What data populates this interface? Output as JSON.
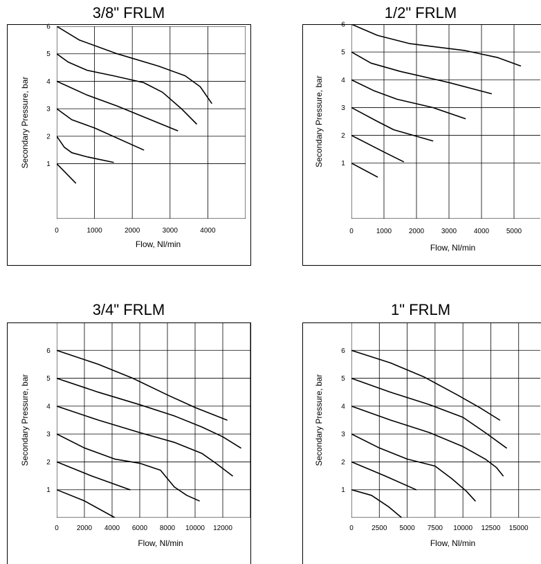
{
  "chart_data": [
    {
      "type": "line",
      "title": "3/8\" FRLM",
      "xlabel": "Flow, Nl/min",
      "ylabel": "Secondary Pressure, bar",
      "xlim": [
        0,
        5000
      ],
      "ylim": [
        -1,
        6
      ],
      "x_ticks": [
        0,
        1000,
        2000,
        3000,
        4000
      ],
      "x_gridlines": [
        1000,
        2000,
        3000,
        4000,
        5000
      ],
      "y_ticks": [
        1,
        2,
        3,
        4,
        5,
        6
      ],
      "grid": true,
      "series": [
        {
          "points": [
            [
              0,
              1.0
            ],
            [
              500,
              0.3
            ]
          ]
        },
        {
          "points": [
            [
              0,
              2.0
            ],
            [
              200,
              1.6
            ],
            [
              400,
              1.4
            ],
            [
              800,
              1.25
            ],
            [
              1500,
              1.05
            ]
          ]
        },
        {
          "points": [
            [
              0,
              3.0
            ],
            [
              400,
              2.6
            ],
            [
              1000,
              2.3
            ],
            [
              2300,
              1.5
            ]
          ]
        },
        {
          "points": [
            [
              0,
              4.0
            ],
            [
              800,
              3.5
            ],
            [
              1600,
              3.1
            ],
            [
              3200,
              2.2
            ]
          ]
        },
        {
          "points": [
            [
              0,
              5.0
            ],
            [
              300,
              4.7
            ],
            [
              800,
              4.4
            ],
            [
              1500,
              4.2
            ],
            [
              2300,
              3.95
            ],
            [
              2800,
              3.6
            ],
            [
              3300,
              3.0
            ],
            [
              3700,
              2.45
            ]
          ]
        },
        {
          "points": [
            [
              0,
              6.0
            ],
            [
              600,
              5.5
            ],
            [
              1600,
              5.0
            ],
            [
              2700,
              4.55
            ],
            [
              3400,
              4.2
            ],
            [
              3800,
              3.8
            ],
            [
              4100,
              3.2
            ]
          ]
        }
      ]
    },
    {
      "type": "line",
      "title": "1/2\" FRLM",
      "xlabel": "Flow, Nl/min",
      "ylabel": "Secondary Pressure, bar",
      "xlim": [
        0,
        6000
      ],
      "ylim": [
        -1,
        6
      ],
      "x_ticks": [
        0,
        1000,
        2000,
        3000,
        4000,
        5000
      ],
      "x_gridlines": [
        1000,
        2000,
        3000,
        4000,
        5000,
        6000
      ],
      "y_ticks": [
        1,
        2,
        3,
        4,
        5,
        6
      ],
      "grid": true,
      "series": [
        {
          "points": [
            [
              0,
              1.0
            ],
            [
              800,
              0.5
            ]
          ]
        },
        {
          "points": [
            [
              0,
              2.0
            ],
            [
              1000,
              1.4
            ],
            [
              1600,
              1.05
            ]
          ]
        },
        {
          "points": [
            [
              0,
              3.0
            ],
            [
              800,
              2.5
            ],
            [
              1300,
              2.2
            ],
            [
              2500,
              1.8
            ]
          ]
        },
        {
          "points": [
            [
              0,
              4.0
            ],
            [
              700,
              3.6
            ],
            [
              1400,
              3.3
            ],
            [
              2500,
              3.0
            ],
            [
              3500,
              2.6
            ]
          ]
        },
        {
          "points": [
            [
              0,
              5.0
            ],
            [
              600,
              4.6
            ],
            [
              1500,
              4.3
            ],
            [
              3000,
              3.9
            ],
            [
              4300,
              3.5
            ]
          ]
        },
        {
          "points": [
            [
              0,
              6.0
            ],
            [
              800,
              5.6
            ],
            [
              1800,
              5.3
            ],
            [
              3500,
              5.05
            ],
            [
              4500,
              4.8
            ],
            [
              5200,
              4.5
            ]
          ]
        }
      ]
    },
    {
      "type": "line",
      "title": "3/4\" FRLM",
      "xlabel": "Flow, Nl/min",
      "ylabel": "Secondary Pressure, bar",
      "xlim": [
        0,
        14000
      ],
      "ylim": [
        0,
        7
      ],
      "x_ticks": [
        0,
        2000,
        4000,
        6000,
        8000,
        10000,
        12000
      ],
      "x_gridlines": [
        2000,
        4000,
        6000,
        8000,
        10000,
        12000,
        14000
      ],
      "y_ticks": [
        1,
        2,
        3,
        4,
        5,
        6
      ],
      "grid": true,
      "series": [
        {
          "points": [
            [
              0,
              1.0
            ],
            [
              2000,
              0.6
            ],
            [
              4200,
              0.0
            ]
          ]
        },
        {
          "points": [
            [
              0,
              2.0
            ],
            [
              2500,
              1.5
            ],
            [
              5300,
              1.0
            ]
          ]
        },
        {
          "points": [
            [
              0,
              3.0
            ],
            [
              2000,
              2.5
            ],
            [
              4200,
              2.1
            ],
            [
              6000,
              1.95
            ],
            [
              7500,
              1.7
            ],
            [
              8500,
              1.1
            ],
            [
              9400,
              0.8
            ],
            [
              10300,
              0.6
            ]
          ]
        },
        {
          "points": [
            [
              0,
              4.0
            ],
            [
              3000,
              3.5
            ],
            [
              6000,
              3.05
            ],
            [
              8500,
              2.7
            ],
            [
              10500,
              2.3
            ],
            [
              11500,
              1.95
            ],
            [
              12700,
              1.5
            ]
          ]
        },
        {
          "points": [
            [
              0,
              5.0
            ],
            [
              3000,
              4.5
            ],
            [
              6000,
              4.05
            ],
            [
              8500,
              3.65
            ],
            [
              10500,
              3.25
            ],
            [
              12000,
              2.9
            ],
            [
              13300,
              2.5
            ]
          ]
        },
        {
          "points": [
            [
              0,
              6.0
            ],
            [
              3000,
              5.5
            ],
            [
              5500,
              5.0
            ],
            [
              8000,
              4.4
            ],
            [
              10000,
              3.95
            ],
            [
              12300,
              3.5
            ]
          ]
        }
      ]
    },
    {
      "type": "line",
      "title": "1\" FRLM",
      "xlabel": "Flow, Nl/min",
      "ylabel": "Secondary Pressure, bar",
      "xlim": [
        0,
        17500
      ],
      "ylim": [
        0,
        7
      ],
      "x_ticks": [
        0,
        2500,
        5000,
        7500,
        10000,
        12500,
        15000
      ],
      "x_gridlines": [
        2500,
        5000,
        7500,
        10000,
        12500,
        15000
      ],
      "y_ticks": [
        1,
        2,
        3,
        4,
        5,
        6
      ],
      "grid": true,
      "series": [
        {
          "points": [
            [
              0,
              1.0
            ],
            [
              1800,
              0.8
            ],
            [
              3300,
              0.4
            ],
            [
              4500,
              0.0
            ]
          ]
        },
        {
          "points": [
            [
              0,
              2.0
            ],
            [
              3000,
              1.5
            ],
            [
              5800,
              1.0
            ]
          ]
        },
        {
          "points": [
            [
              0,
              3.0
            ],
            [
              2500,
              2.5
            ],
            [
              5000,
              2.1
            ],
            [
              7500,
              1.85
            ],
            [
              9000,
              1.4
            ],
            [
              10300,
              0.95
            ],
            [
              11100,
              0.6
            ]
          ]
        },
        {
          "points": [
            [
              0,
              4.0
            ],
            [
              3500,
              3.5
            ],
            [
              7000,
              3.05
            ],
            [
              10000,
              2.55
            ],
            [
              12000,
              2.1
            ],
            [
              13000,
              1.8
            ],
            [
              13600,
              1.5
            ]
          ]
        },
        {
          "points": [
            [
              0,
              5.0
            ],
            [
              3500,
              4.5
            ],
            [
              7000,
              4.05
            ],
            [
              10000,
              3.6
            ],
            [
              12000,
              3.05
            ],
            [
              13900,
              2.5
            ]
          ]
        },
        {
          "points": [
            [
              0,
              6.0
            ],
            [
              3500,
              5.55
            ],
            [
              6500,
              5.05
            ],
            [
              9500,
              4.4
            ],
            [
              11500,
              3.95
            ],
            [
              13300,
              3.5
            ]
          ]
        }
      ]
    }
  ]
}
